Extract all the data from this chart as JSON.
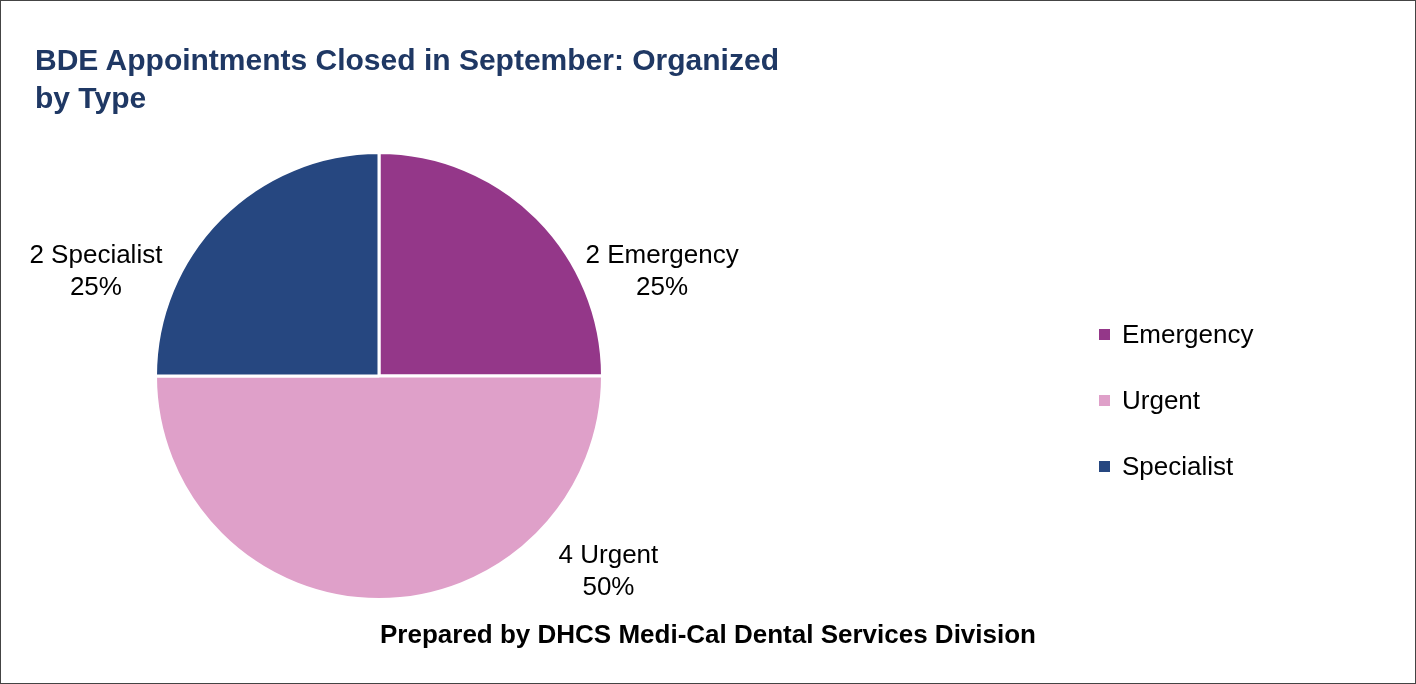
{
  "chart_data": {
    "type": "pie",
    "title": "BDE Appointments Closed in September: Organized by Type",
    "categories": [
      "Emergency",
      "Urgent",
      "Specialist"
    ],
    "values": [
      2,
      4,
      2
    ],
    "colors": [
      "#943789",
      "#dfa0c9",
      "#264780"
    ],
    "value_labels": [
      "2 Emergency\n25%",
      "4 Urgent\n50%",
      "2 Specialist\n25%"
    ],
    "legend": "right",
    "annotations": [
      "Prepared by DHCS Medi-Cal Dental Services Division"
    ]
  }
}
